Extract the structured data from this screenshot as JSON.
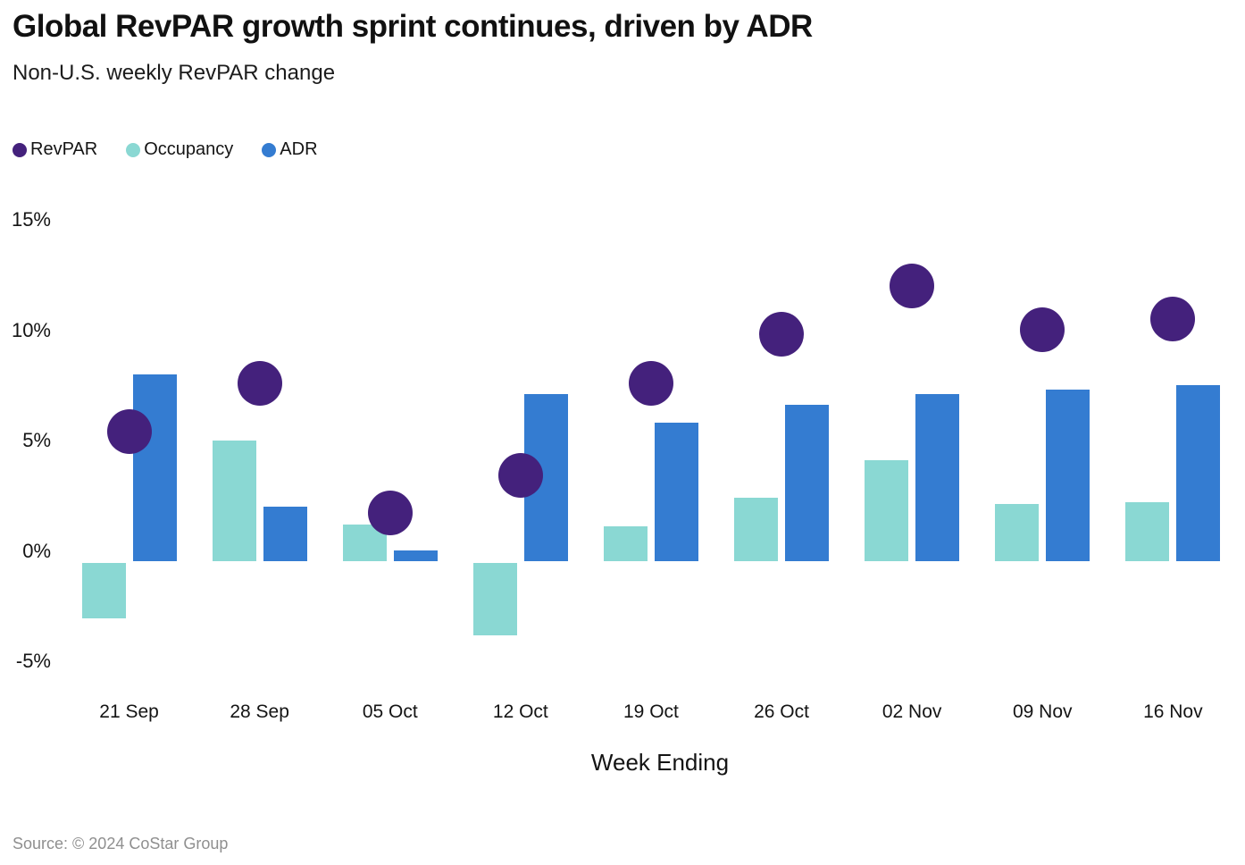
{
  "header": {
    "title": "Global RevPAR growth sprint continues, driven by ADR",
    "subtitle": "Non-U.S. weekly RevPAR change"
  },
  "footer": {
    "source": "Source: © 2024 CoStar Group"
  },
  "chart_data": {
    "type": "bar",
    "subtype": "grouped-bar-with-scatter-overlay",
    "title": "Global RevPAR growth sprint continues, driven by ADR",
    "subtitle": "Non-U.S. weekly RevPAR change",
    "xlabel": "Week Ending",
    "ylabel": "",
    "unit": "%",
    "categories": [
      "21 Sep",
      "28 Sep",
      "05 Oct",
      "12 Oct",
      "19 Oct",
      "26 Oct",
      "02 Nov",
      "09 Nov",
      "16 Nov"
    ],
    "series": [
      {
        "name": "RevPAR",
        "type": "scatter",
        "color": "#44217c",
        "values": [
          5.9,
          8.1,
          2.2,
          3.9,
          8.1,
          10.3,
          12.5,
          10.5,
          11.0
        ]
      },
      {
        "name": "Occupancy",
        "type": "bar",
        "color": "#8ad8d3",
        "values": [
          -2.5,
          5.5,
          1.7,
          -3.3,
          1.6,
          2.9,
          4.6,
          2.6,
          2.7
        ]
      },
      {
        "name": "ADR",
        "type": "bar",
        "color": "#347cd1",
        "values": [
          8.5,
          2.5,
          0.5,
          7.6,
          6.3,
          7.1,
          7.6,
          7.8,
          8.0
        ]
      }
    ],
    "yticks": [
      {
        "label": "15%",
        "value": 15
      },
      {
        "label": "10%",
        "value": 10
      },
      {
        "label": "5%",
        "value": 5
      },
      {
        "label": "0%",
        "value": 0
      },
      {
        "label": "-5%",
        "value": -5
      }
    ],
    "ylim": [
      -5.5,
      15.5
    ],
    "grid": false,
    "legend_position": "top-left"
  }
}
